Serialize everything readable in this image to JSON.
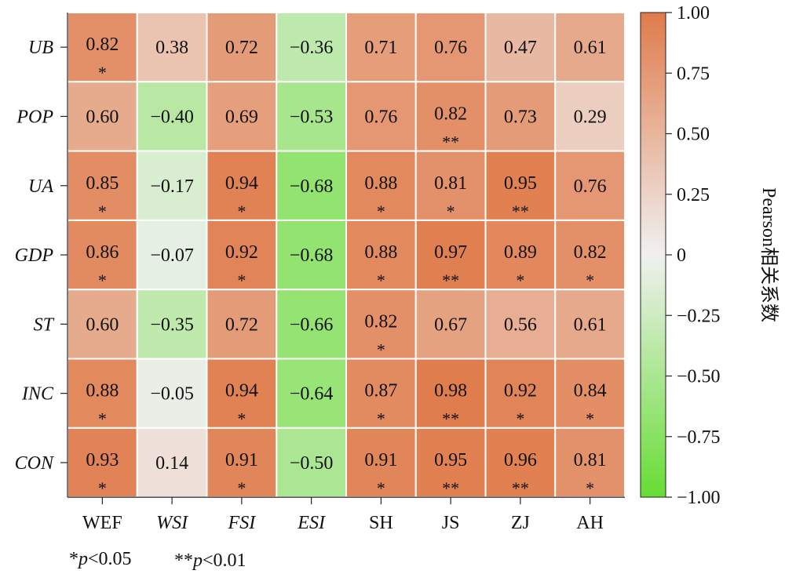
{
  "chart_data": {
    "type": "heatmap",
    "rows": [
      "UB",
      "POP",
      "UA",
      "GDP",
      "ST",
      "INC",
      "CON"
    ],
    "columns": [
      "WEF",
      "WSI",
      "FSI",
      "ESI",
      "SH",
      "JS",
      "ZJ",
      "AH"
    ],
    "italic_columns": [
      "WSI",
      "FSI",
      "ESI"
    ],
    "values": [
      [
        0.82,
        0.38,
        0.72,
        -0.36,
        0.71,
        0.76,
        0.47,
        0.61
      ],
      [
        0.6,
        -0.4,
        0.69,
        -0.53,
        0.76,
        0.82,
        0.73,
        0.29
      ],
      [
        0.85,
        -0.17,
        0.94,
        -0.68,
        0.88,
        0.81,
        0.95,
        0.76
      ],
      [
        0.86,
        -0.07,
        0.92,
        -0.68,
        0.88,
        0.97,
        0.89,
        0.82
      ],
      [
        0.6,
        -0.35,
        0.72,
        -0.66,
        0.82,
        0.67,
        0.56,
        0.61
      ],
      [
        0.88,
        -0.05,
        0.94,
        -0.64,
        0.87,
        0.98,
        0.92,
        0.84
      ],
      [
        0.93,
        0.14,
        0.91,
        -0.5,
        0.91,
        0.95,
        0.96,
        0.81
      ]
    ],
    "labels": [
      [
        "0.82",
        "0.38",
        "0.72",
        "−0.36",
        "0.71",
        "0.76",
        "0.47",
        "0.61"
      ],
      [
        "0.60",
        "−0.40",
        "0.69",
        "−0.53",
        "0.76",
        "0.82",
        "0.73",
        "0.29"
      ],
      [
        "0.85",
        "−0.17",
        "0.94",
        "−0.68",
        "0.88",
        "0.81",
        "0.95",
        "0.76"
      ],
      [
        "0.86",
        "−0.07",
        "0.92",
        "−0.68",
        "0.88",
        "0.97",
        "0.89",
        "0.82"
      ],
      [
        "0.60",
        "−0.35",
        "0.72",
        "−0.66",
        "0.82",
        "0.67",
        "0.56",
        "0.61"
      ],
      [
        "0.88",
        "−0.05",
        "0.94",
        "−0.64",
        "0.87",
        "0.98",
        "0.92",
        "0.84"
      ],
      [
        "0.93",
        "0.14",
        "0.91",
        "−0.50",
        "0.91",
        "0.95",
        "0.96",
        "0.81"
      ]
    ],
    "significance": [
      [
        "*",
        "",
        "",
        "",
        "",
        "",
        "",
        ""
      ],
      [
        "",
        "",
        "",
        "",
        "",
        "**",
        "",
        ""
      ],
      [
        "*",
        "",
        "*",
        "",
        "*",
        "*",
        "**",
        ""
      ],
      [
        "*",
        "",
        "*",
        "",
        "*",
        "**",
        "*",
        "*"
      ],
      [
        "",
        "",
        "",
        "",
        "*",
        "",
        "",
        ""
      ],
      [
        "*",
        "",
        "*",
        "",
        "*",
        "**",
        "*",
        "*"
      ],
      [
        "*",
        "",
        "*",
        "",
        "*",
        "**",
        "**",
        "*"
      ]
    ],
    "colorbar": {
      "label": "Pearson相关系数",
      "min": -1.0,
      "max": 1.0,
      "ticks": [
        1.0,
        0.75,
        0.5,
        0.25,
        0,
        -0.25,
        -0.5,
        -0.75,
        -1.0
      ],
      "tick_labels": [
        "1.00",
        "0.75",
        "0.50",
        "0.25",
        "0",
        "−0.25",
        "−0.50",
        "−0.75",
        "−1.00"
      ],
      "color_max": "#e07b4a",
      "color_mid": "#f0f0f0",
      "color_min": "#66dd33"
    },
    "legend_note": {
      "p05_stars": "*",
      "p05_var": "p",
      "p05_rest": "<0.05",
      "p01_stars": "**",
      "p01_var": "p",
      "p01_rest": "<0.01"
    }
  }
}
